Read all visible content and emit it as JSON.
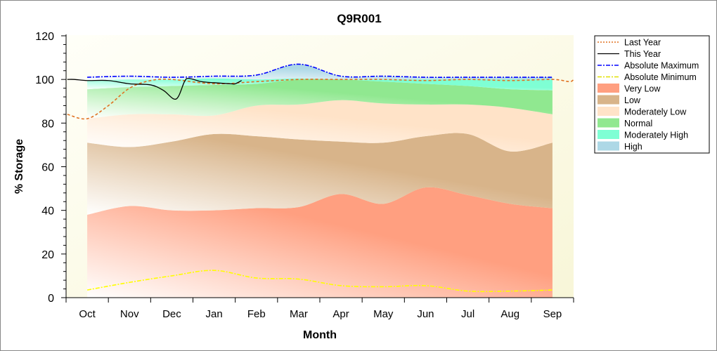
{
  "chart_data": {
    "type": "area",
    "title": "Q9R001",
    "xlabel": "Month",
    "ylabel": "% Storage",
    "categories": [
      "Oct",
      "Nov",
      "Dec",
      "Jan",
      "Feb",
      "Mar",
      "Apr",
      "May",
      "Jun",
      "Jul",
      "Aug",
      "Sep"
    ],
    "ylim": [
      0,
      120
    ],
    "yticks": [
      0,
      20,
      40,
      60,
      80,
      100,
      120
    ],
    "legend_position": "right",
    "bands": [
      {
        "name": "Very Low",
        "color": "#ff9f80",
        "upper": [
          38,
          42,
          40,
          40,
          41,
          41.5,
          47.5,
          43,
          50.5,
          47,
          43,
          41
        ]
      },
      {
        "name": "Low",
        "color": "#d8b48a",
        "upper": [
          71,
          69,
          71.5,
          75,
          74,
          72.5,
          71.5,
          71,
          74,
          75,
          67,
          71
        ]
      },
      {
        "name": "Moderately Low",
        "color": "#ffe3c8",
        "upper": [
          82,
          84,
          84,
          83.5,
          88,
          88.5,
          90.5,
          89,
          88.5,
          88.5,
          87,
          84
        ]
      },
      {
        "name": "Normal",
        "color": "#90e890",
        "upper": [
          95.5,
          96.5,
          97,
          97.5,
          98,
          100,
          100,
          99,
          98,
          97,
          95.5,
          95
        ]
      },
      {
        "name": "Moderately High",
        "color": "#7fffd4",
        "upper": [
          99.5,
          100,
          100,
          100.5,
          100,
          100.5,
          100,
          100,
          100,
          100,
          100,
          100
        ]
      },
      {
        "name": "High",
        "color": "#add8e6",
        "upper": [
          101,
          101.5,
          101,
          101.5,
          102,
          107,
          101.5,
          101.5,
          101,
          101,
          101,
          101
        ]
      }
    ],
    "series": [
      {
        "name": "Last Year",
        "color": "#e07020",
        "style": "dashed",
        "x": [
          -0.47,
          0,
          0.5,
          1,
          1.5,
          2,
          3,
          4,
          5,
          6,
          7,
          8,
          9,
          10,
          11,
          11.4,
          11.5
        ],
        "y": [
          84,
          82,
          88,
          96,
          99.5,
          100,
          98,
          99,
          100,
          100,
          100,
          99.5,
          100,
          99.5,
          100,
          99,
          100
        ]
      },
      {
        "name": "This Year",
        "color": "#000000",
        "style": "solid",
        "x": [
          -0.47,
          -0.3,
          0,
          0.5,
          1,
          1.5,
          1.8,
          2.1,
          2.3,
          2.4,
          2.7,
          3,
          3.4,
          3.5,
          3.65
        ],
        "y": [
          100,
          100,
          99.5,
          99.5,
          98,
          97.5,
          95,
          91,
          99,
          100.5,
          99,
          98.5,
          98,
          98,
          99.5
        ]
      },
      {
        "name": "Absolute Maximum",
        "color": "#0000ff",
        "style": "dashdot",
        "x": [
          0,
          1,
          2,
          3,
          4,
          5,
          6,
          7,
          8,
          9,
          10,
          11
        ],
        "y": [
          101,
          101.5,
          101,
          101.5,
          102,
          107,
          101.5,
          101.5,
          101,
          101,
          101,
          101
        ]
      },
      {
        "name": "Absolute Minimum",
        "color": "#ffff00",
        "style": "dashdot",
        "x": [
          0,
          1,
          2,
          3,
          4,
          5,
          6,
          7,
          8,
          9,
          10,
          11
        ],
        "y": [
          3.5,
          7,
          10,
          12.5,
          9,
          8.5,
          5.5,
          5,
          5.5,
          3,
          3,
          3.5
        ]
      }
    ],
    "legend": [
      "Last Year",
      "This Year",
      "Absolute Maximum",
      "Absolute Minimum",
      "Very Low",
      "Low",
      "Moderately Low",
      "Normal",
      "Moderately High",
      "High"
    ]
  }
}
